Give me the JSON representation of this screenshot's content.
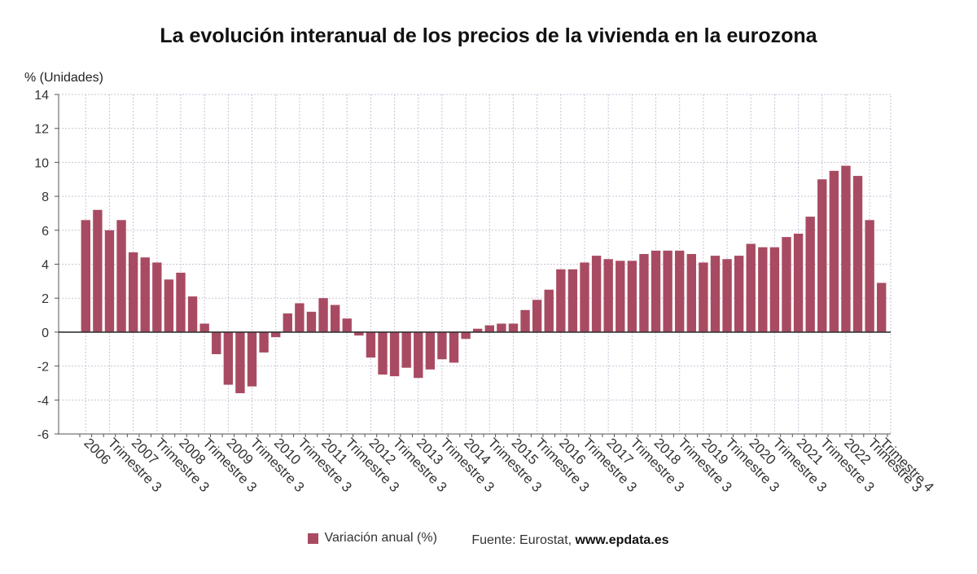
{
  "chart_data": {
    "type": "bar",
    "title": "La evolución interanual de los precios de la vivienda en la eurozona",
    "ylabel": "% (Unidades)",
    "xlabel": "",
    "ylim": [
      -6,
      14
    ],
    "yticks": [
      -6,
      -4,
      -2,
      0,
      2,
      4,
      6,
      8,
      10,
      12,
      14
    ],
    "grid": true,
    "bar_color": "#a84b62",
    "legend_position": "bottom",
    "categories": [
      "2006 T1",
      "2006 T2",
      "2006 T3",
      "2006 T4",
      "2007 T1",
      "2007 T2",
      "2007 T3",
      "2007 T4",
      "2008 T1",
      "2008 T2",
      "2008 T3",
      "2008 T4",
      "2009 T1",
      "2009 T2",
      "2009 T3",
      "2009 T4",
      "2010 T1",
      "2010 T2",
      "2010 T3",
      "2010 T4",
      "2011 T1",
      "2011 T2",
      "2011 T3",
      "2011 T4",
      "2012 T1",
      "2012 T2",
      "2012 T3",
      "2012 T4",
      "2013 T1",
      "2013 T2",
      "2013 T3",
      "2013 T4",
      "2014 T1",
      "2014 T2",
      "2014 T3",
      "2014 T4",
      "2015 T1",
      "2015 T2",
      "2015 T3",
      "2015 T4",
      "2016 T1",
      "2016 T2",
      "2016 T3",
      "2016 T4",
      "2017 T1",
      "2017 T2",
      "2017 T3",
      "2017 T4",
      "2018 T1",
      "2018 T2",
      "2018 T3",
      "2018 T4",
      "2019 T1",
      "2019 T2",
      "2019 T3",
      "2019 T4",
      "2020 T1",
      "2020 T2",
      "2020 T3",
      "2020 T4",
      "2021 T1",
      "2021 T2",
      "2021 T3",
      "2021 T4",
      "2022 T1",
      "2022 T2",
      "2022 T3",
      "2022 T4"
    ],
    "series": [
      {
        "name": "Variación anual (%)",
        "values": [
          6.6,
          7.2,
          6.0,
          6.6,
          4.7,
          4.4,
          4.1,
          3.1,
          3.5,
          2.1,
          0.5,
          -1.3,
          -3.1,
          -3.6,
          -3.2,
          -1.2,
          -0.3,
          1.1,
          1.7,
          1.2,
          2.0,
          1.6,
          0.8,
          -0.2,
          -1.5,
          -2.5,
          -2.6,
          -2.1,
          -2.7,
          -2.2,
          -1.6,
          -1.8,
          -0.4,
          0.2,
          0.4,
          0.5,
          0.5,
          1.3,
          1.9,
          2.5,
          3.7,
          3.7,
          4.1,
          4.5,
          4.3,
          4.2,
          4.2,
          4.6,
          4.8,
          4.8,
          4.8,
          4.6,
          4.1,
          4.5,
          4.3,
          4.5,
          5.2,
          5.0,
          5.0,
          5.6,
          5.8,
          6.8,
          9.0,
          9.5,
          9.8,
          9.2,
          6.6,
          2.9
        ]
      }
    ],
    "x_tick_labels": [
      {
        "index": 0,
        "text": "2006"
      },
      {
        "index": 2,
        "text": "Trimestre 3"
      },
      {
        "index": 4,
        "text": "2007"
      },
      {
        "index": 6,
        "text": "Trimestre 3"
      },
      {
        "index": 8,
        "text": "2008"
      },
      {
        "index": 10,
        "text": "Trimestre 3"
      },
      {
        "index": 12,
        "text": "2009"
      },
      {
        "index": 14,
        "text": "Trimestre 3"
      },
      {
        "index": 16,
        "text": "2010"
      },
      {
        "index": 18,
        "text": "Trimestre 3"
      },
      {
        "index": 20,
        "text": "2011"
      },
      {
        "index": 22,
        "text": "Trimestre 3"
      },
      {
        "index": 24,
        "text": "2012"
      },
      {
        "index": 26,
        "text": "Trimestre 3"
      },
      {
        "index": 28,
        "text": "2013"
      },
      {
        "index": 30,
        "text": "Trimestre 3"
      },
      {
        "index": 32,
        "text": "2014"
      },
      {
        "index": 34,
        "text": "Trimestre 3"
      },
      {
        "index": 36,
        "text": "2015"
      },
      {
        "index": 38,
        "text": "Trimestre 3"
      },
      {
        "index": 40,
        "text": "2016"
      },
      {
        "index": 42,
        "text": "Trimestre 3"
      },
      {
        "index": 44,
        "text": "2017"
      },
      {
        "index": 46,
        "text": "Trimestre 3"
      },
      {
        "index": 48,
        "text": "2018"
      },
      {
        "index": 50,
        "text": "Trimestre 3"
      },
      {
        "index": 52,
        "text": "2019"
      },
      {
        "index": 54,
        "text": "Trimestre 3"
      },
      {
        "index": 56,
        "text": "2020"
      },
      {
        "index": 58,
        "text": "Trimestre 3"
      },
      {
        "index": 60,
        "text": "2021"
      },
      {
        "index": 62,
        "text": "Trimestre 3"
      },
      {
        "index": 64,
        "text": "2022"
      },
      {
        "index": 66,
        "text": "Trimestre 3"
      },
      {
        "index": 67,
        "text": "Trimestre 4"
      }
    ]
  },
  "legend": {
    "label": "Variación anual (%)",
    "source_prefix": "Fuente: Eurostat,",
    "source_site": "www.epdata.es"
  }
}
